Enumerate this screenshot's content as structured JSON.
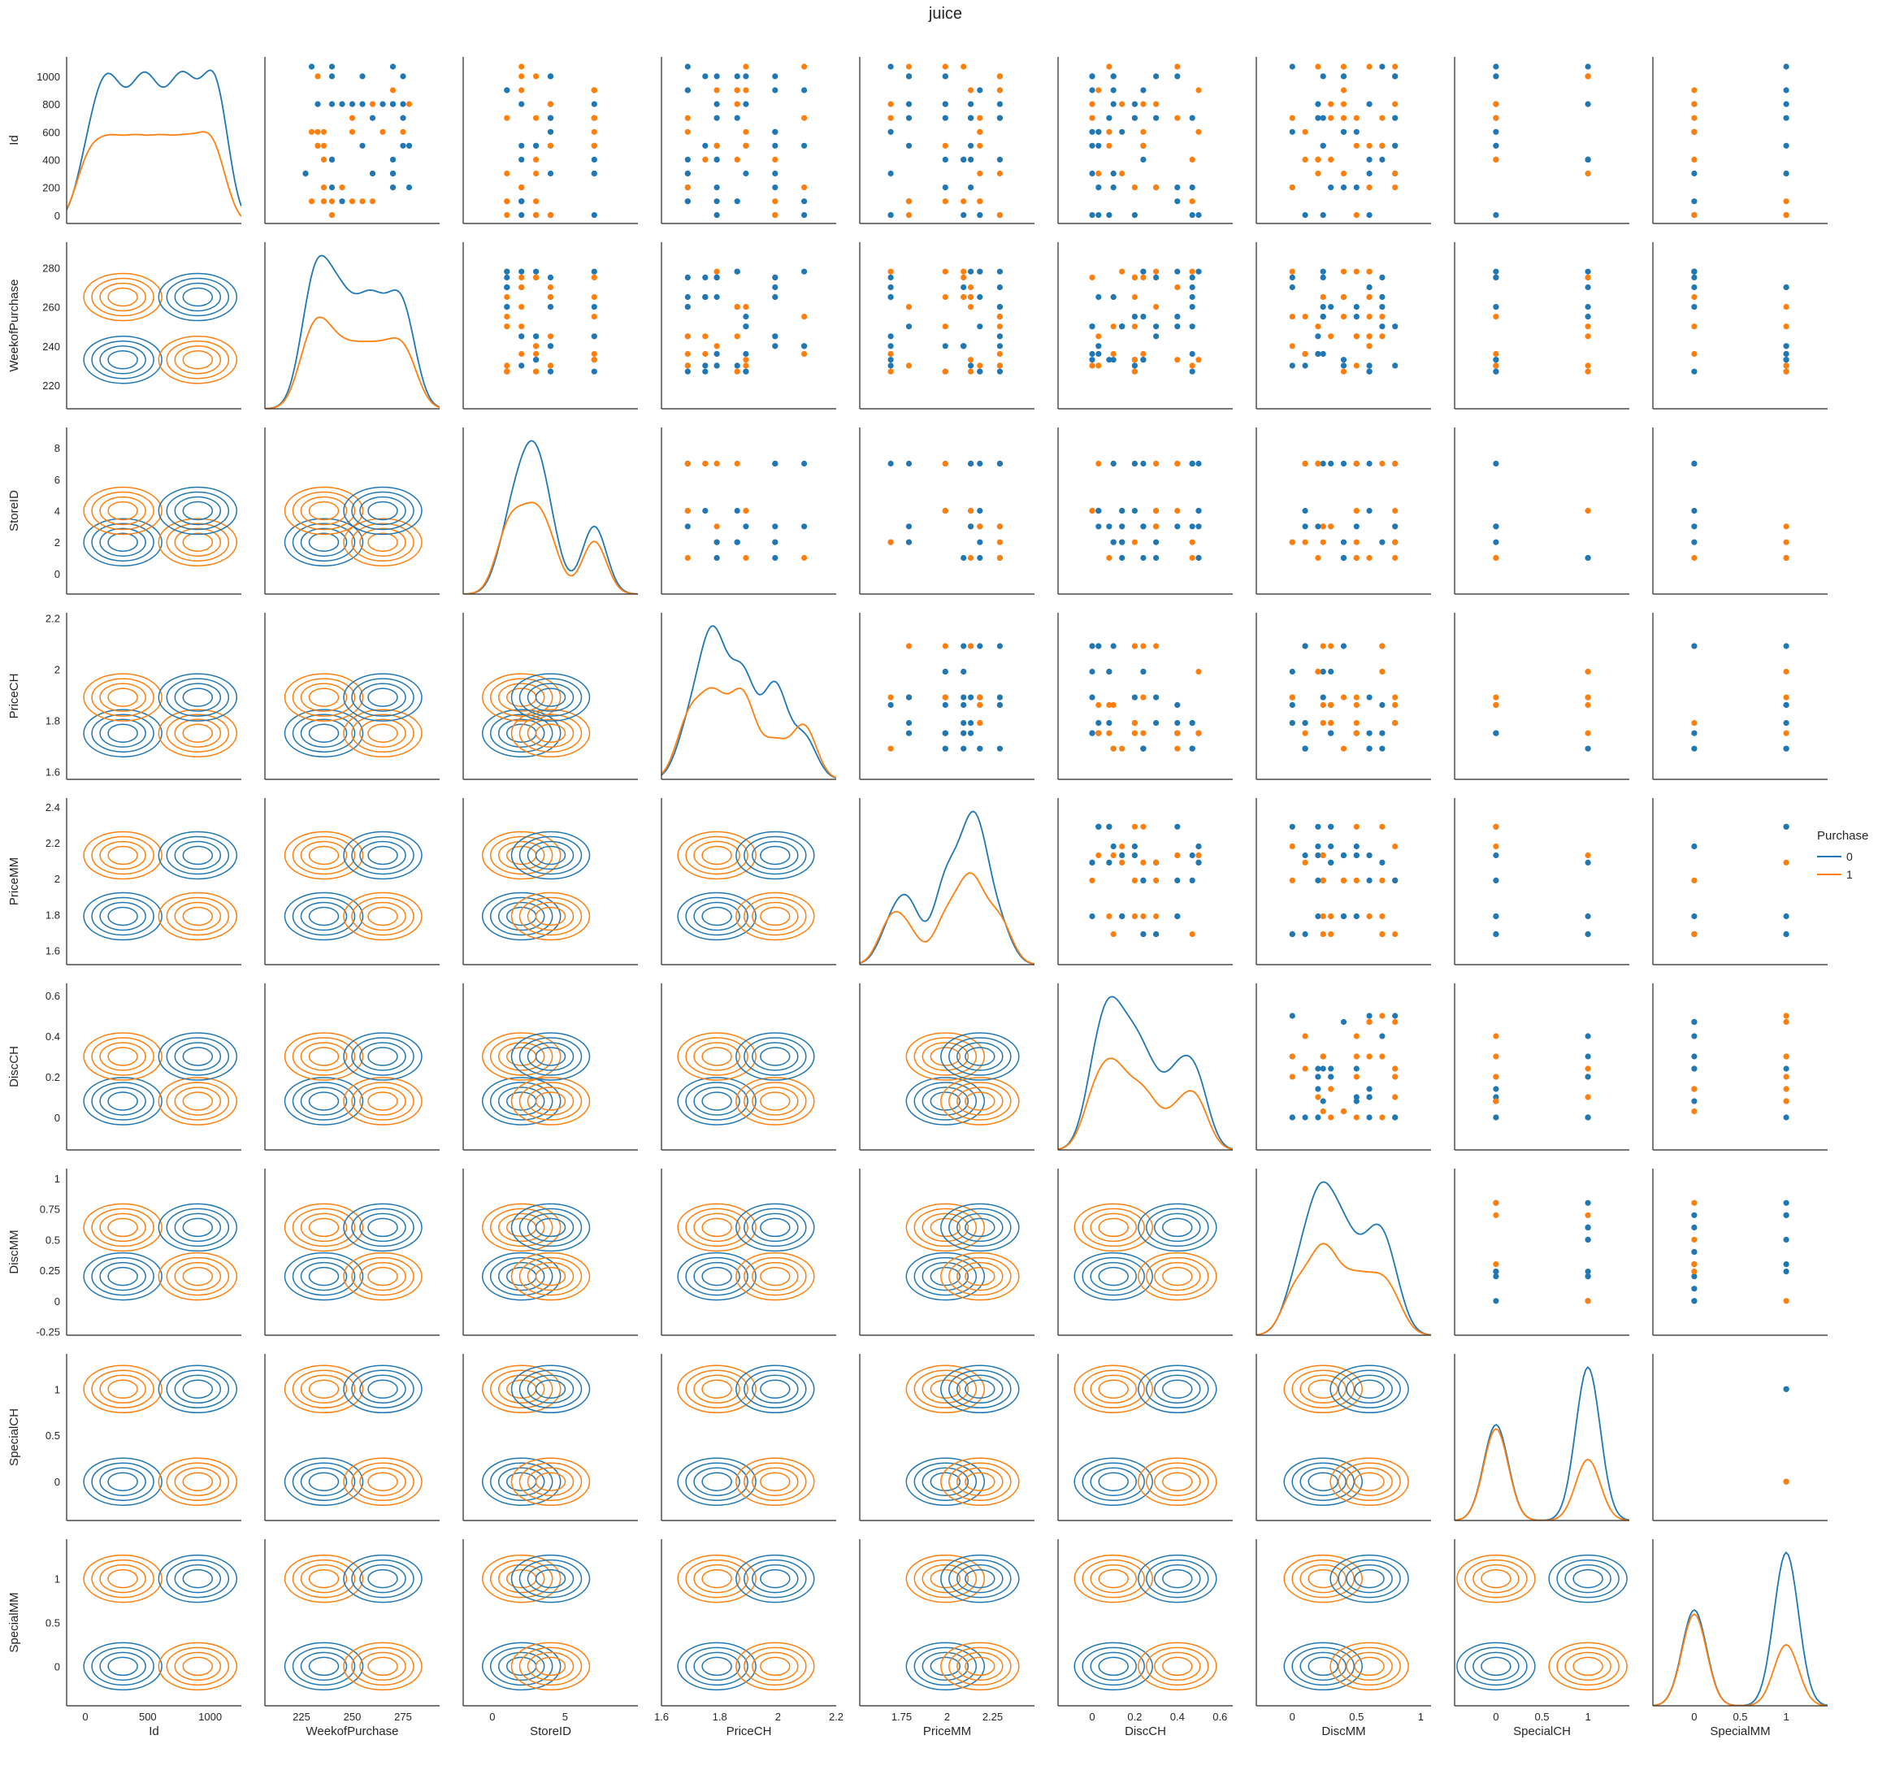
{
  "title": "juice",
  "legend": {
    "title": "Purchase",
    "entries": [
      {
        "label": "0",
        "color": "#1f77b4"
      },
      {
        "label": "1",
        "color": "#ff7f0e"
      }
    ]
  },
  "chart_data": {
    "type": "pairplot",
    "title": "juice",
    "hue": "Purchase",
    "diagonal": "kde",
    "upper": "scatter",
    "lower": "kde",
    "grid": false,
    "legend_position": "right",
    "variables": [
      {
        "name": "Id",
        "range": [
          -150,
          1250
        ],
        "ticks": [
          0,
          500,
          1000
        ],
        "ylim": [
          -60,
          1140
        ],
        "yticks": [
          0,
          200,
          400,
          600,
          800,
          1000
        ],
        "values": [
          1,
          100,
          200,
          300,
          400,
          500,
          600,
          700,
          800,
          900,
          1000,
          1070
        ]
      },
      {
        "name": "WeekofPurchase",
        "range": [
          207,
          293
        ],
        "ticks": [
          225,
          250,
          275
        ],
        "ylim": [
          208,
          293
        ],
        "yticks": [
          220,
          240,
          260,
          280
        ],
        "values": [
          227,
          230,
          233,
          236,
          240,
          245,
          250,
          255,
          260,
          265,
          270,
          275,
          278
        ]
      },
      {
        "name": "StoreID",
        "range": [
          -2,
          10
        ],
        "ticks": [
          0,
          5
        ],
        "ylim": [
          -1.3,
          9.3
        ],
        "yticks": [
          0,
          2,
          4,
          6,
          8
        ],
        "values": [
          1,
          2,
          3,
          4,
          7
        ]
      },
      {
        "name": "PriceCH",
        "range": [
          1.6,
          2.2
        ],
        "ticks": [
          1.6,
          1.8,
          2.0,
          2.2
        ],
        "ylim": [
          1.57,
          2.22
        ],
        "yticks": [
          1.6,
          1.8,
          2.0,
          2.2
        ],
        "values": [
          1.69,
          1.75,
          1.79,
          1.86,
          1.89,
          1.99,
          2.09
        ]
      },
      {
        "name": "PriceMM",
        "range": [
          1.52,
          2.48
        ],
        "ticks": [
          1.75,
          2.0,
          2.25
        ],
        "ylim": [
          1.52,
          2.45
        ],
        "yticks": [
          1.6,
          1.8,
          2.0,
          2.2,
          2.4
        ],
        "values": [
          1.69,
          1.79,
          1.99,
          2.09,
          2.13,
          2.18,
          2.29
        ]
      },
      {
        "name": "DiscCH",
        "range": [
          -0.16,
          0.66
        ],
        "ticks": [
          0.0,
          0.2,
          0.4,
          0.6
        ],
        "ylim": [
          -0.16,
          0.66
        ],
        "yticks": [
          0.0,
          0.2,
          0.4,
          0.6
        ],
        "values": [
          0.0,
          0.03,
          0.08,
          0.1,
          0.14,
          0.2,
          0.24,
          0.3,
          0.4,
          0.47,
          0.5
        ]
      },
      {
        "name": "DiscMM",
        "range": [
          -0.28,
          1.08
        ],
        "ticks": [
          0.0,
          0.5,
          1.0
        ],
        "ylim": [
          -0.28,
          1.08
        ],
        "yticks": [
          -0.25,
          0.0,
          0.25,
          0.5,
          0.75,
          1.0
        ],
        "values": [
          0.0,
          0.1,
          0.2,
          0.24,
          0.3,
          0.4,
          0.5,
          0.6,
          0.7,
          0.8
        ]
      },
      {
        "name": "SpecialCH",
        "range": [
          -0.45,
          1.45
        ],
        "ticks": [
          0.0,
          0.5,
          1.0
        ],
        "ylim": [
          -0.42,
          1.38
        ],
        "yticks": [
          0.0,
          0.5,
          1.0
        ],
        "values": [
          0,
          1
        ]
      },
      {
        "name": "SpecialMM",
        "range": [
          -0.45,
          1.45
        ],
        "ticks": [
          0.0,
          0.5,
          1.0
        ],
        "ylim": [
          -0.45,
          1.45
        ],
        "yticks": [
          0.0,
          0.5,
          1.0
        ],
        "values": [
          0,
          1
        ]
      }
    ]
  }
}
